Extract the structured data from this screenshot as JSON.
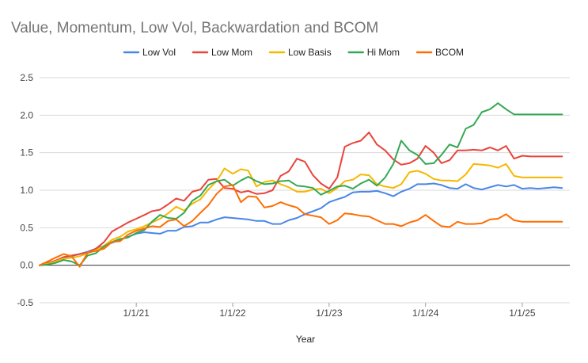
{
  "chart_data": {
    "type": "line",
    "title": "Value, Momentum, Low Vol, Backwardation and BCOM",
    "xlabel": "Year",
    "ylabel": "",
    "ylim": [
      -0.5,
      2.5
    ],
    "yticks": [
      -0.5,
      0.0,
      0.5,
      1.0,
      1.5,
      2.0,
      2.5
    ],
    "ytick_labels": [
      "-0.5",
      "0.0",
      "0.5",
      "1.0",
      "1.5",
      "2.0",
      "2.5"
    ],
    "xlim": [
      "2020-01-01",
      "2025-06-30"
    ],
    "xticks": [
      "2021-01-01",
      "2022-01-01",
      "2023-01-01",
      "2024-01-01",
      "2025-01-01"
    ],
    "xtick_labels": [
      "1/1/21",
      "1/1/22",
      "1/1/23",
      "1/1/24",
      "1/1/25"
    ],
    "grid": "horizontal",
    "legend_position": "top",
    "x": [
      "2020-01",
      "2020-02",
      "2020-03",
      "2020-04",
      "2020-05",
      "2020-06",
      "2020-07",
      "2020-08",
      "2020-09",
      "2020-10",
      "2020-11",
      "2020-12",
      "2021-01",
      "2021-02",
      "2021-03",
      "2021-04",
      "2021-05",
      "2021-06",
      "2021-07",
      "2021-08",
      "2021-09",
      "2021-10",
      "2021-11",
      "2021-12",
      "2022-01",
      "2022-02",
      "2022-03",
      "2022-04",
      "2022-05",
      "2022-06",
      "2022-07",
      "2022-08",
      "2022-09",
      "2022-10",
      "2022-11",
      "2022-12",
      "2023-01",
      "2023-02",
      "2023-03",
      "2023-04",
      "2023-05",
      "2023-06",
      "2023-07",
      "2023-08",
      "2023-09",
      "2023-10",
      "2023-11",
      "2023-12",
      "2024-01",
      "2024-02",
      "2024-03",
      "2024-04",
      "2024-05",
      "2024-06",
      "2024-07",
      "2024-08",
      "2024-09",
      "2024-10",
      "2024-11",
      "2024-12",
      "2025-01",
      "2025-02",
      "2025-03",
      "2025-04",
      "2025-05",
      "2025-06"
    ],
    "series": [
      {
        "name": "Low Vol",
        "color": "#4a86e8",
        "values": [
          0.0,
          0.02,
          0.06,
          0.1,
          0.12,
          0.15,
          0.18,
          0.22,
          0.26,
          0.3,
          0.34,
          0.38,
          0.42,
          0.44,
          0.43,
          0.42,
          0.46,
          0.46,
          0.51,
          0.52,
          0.57,
          0.57,
          0.61,
          0.64,
          0.63,
          0.62,
          0.61,
          0.59,
          0.59,
          0.55,
          0.55,
          0.6,
          0.63,
          0.68,
          0.72,
          0.76,
          0.84,
          0.88,
          0.91,
          0.97,
          0.98,
          0.98,
          0.99,
          0.96,
          0.92,
          0.98,
          1.02,
          1.08,
          1.08,
          1.09,
          1.07,
          1.03,
          1.02,
          1.08,
          1.03,
          1.01,
          1.04,
          1.07,
          1.05,
          1.07,
          1.02,
          1.03,
          1.02,
          1.03,
          1.04,
          1.03
        ]
      },
      {
        "name": "Low Mom",
        "color": "#e8453c",
        "values": [
          0.0,
          0.03,
          0.06,
          0.11,
          0.13,
          0.15,
          0.17,
          0.22,
          0.31,
          0.45,
          0.51,
          0.57,
          0.62,
          0.67,
          0.72,
          0.74,
          0.81,
          0.89,
          0.86,
          0.98,
          1.01,
          1.14,
          1.15,
          1.03,
          1.02,
          0.97,
          0.99,
          0.95,
          0.96,
          1.0,
          1.19,
          1.25,
          1.42,
          1.38,
          1.2,
          1.09,
          1.02,
          1.17,
          1.58,
          1.63,
          1.66,
          1.77,
          1.61,
          1.53,
          1.41,
          1.34,
          1.36,
          1.42,
          1.59,
          1.5,
          1.36,
          1.4,
          1.53,
          1.53,
          1.54,
          1.53,
          1.57,
          1.53,
          1.59,
          1.42,
          1.46,
          1.45,
          1.45,
          1.45,
          1.45,
          1.45
        ]
      },
      {
        "name": "Low Basis",
        "color": "#f5b800",
        "values": [
          0.0,
          0.02,
          0.05,
          0.09,
          0.1,
          0.12,
          0.16,
          0.2,
          0.26,
          0.34,
          0.38,
          0.45,
          0.48,
          0.52,
          0.57,
          0.62,
          0.69,
          0.78,
          0.73,
          0.82,
          0.88,
          1.01,
          1.12,
          1.29,
          1.22,
          1.28,
          1.26,
          1.05,
          1.11,
          1.13,
          1.08,
          1.04,
          0.98,
          0.98,
          1.01,
          1.02,
          0.96,
          1.03,
          1.12,
          1.14,
          1.21,
          1.2,
          1.08,
          1.05,
          1.03,
          1.08,
          1.24,
          1.26,
          1.22,
          1.15,
          1.13,
          1.13,
          1.12,
          1.21,
          1.35,
          1.34,
          1.33,
          1.3,
          1.35,
          1.19,
          1.17,
          1.17,
          1.17,
          1.17,
          1.17,
          1.17
        ]
      },
      {
        "name": "Hi Mom",
        "color": "#34a853",
        "values": [
          0.0,
          0.01,
          0.03,
          0.07,
          0.05,
          0.0,
          0.13,
          0.16,
          0.25,
          0.31,
          0.35,
          0.37,
          0.43,
          0.47,
          0.58,
          0.67,
          0.63,
          0.62,
          0.7,
          0.86,
          0.93,
          1.07,
          1.12,
          1.14,
          1.06,
          1.13,
          1.18,
          1.12,
          1.08,
          1.09,
          1.12,
          1.13,
          1.06,
          1.05,
          1.03,
          0.94,
          0.99,
          1.05,
          1.06,
          1.02,
          1.09,
          1.14,
          1.06,
          1.17,
          1.35,
          1.66,
          1.53,
          1.47,
          1.35,
          1.36,
          1.47,
          1.61,
          1.57,
          1.82,
          1.87,
          2.04,
          2.08,
          2.16,
          2.08,
          2.01,
          2.01,
          2.01,
          2.01,
          2.01,
          2.01,
          2.01
        ]
      },
      {
        "name": "BCOM",
        "color": "#ff6d01",
        "values": [
          0.0,
          0.05,
          0.1,
          0.15,
          0.12,
          -0.02,
          0.17,
          0.19,
          0.22,
          0.31,
          0.32,
          0.41,
          0.46,
          0.49,
          0.52,
          0.51,
          0.59,
          0.61,
          0.52,
          0.59,
          0.7,
          0.8,
          0.95,
          1.05,
          1.07,
          0.84,
          0.92,
          0.91,
          0.77,
          0.79,
          0.84,
          0.8,
          0.77,
          0.68,
          0.66,
          0.64,
          0.55,
          0.6,
          0.69,
          0.68,
          0.66,
          0.65,
          0.6,
          0.55,
          0.55,
          0.52,
          0.57,
          0.6,
          0.67,
          0.59,
          0.52,
          0.51,
          0.58,
          0.55,
          0.55,
          0.56,
          0.61,
          0.62,
          0.68,
          0.6,
          0.58,
          0.58,
          0.58,
          0.58,
          0.58,
          0.58
        ]
      }
    ]
  }
}
